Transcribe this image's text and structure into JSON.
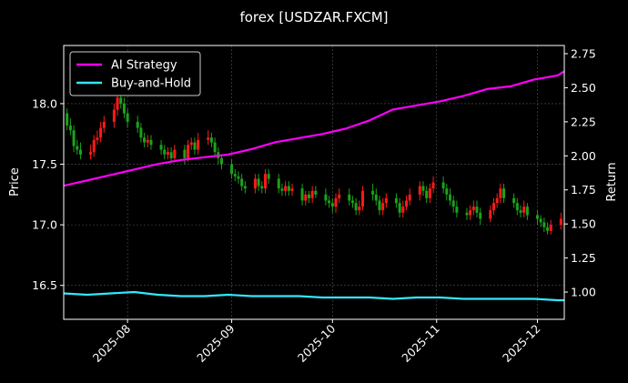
{
  "chart_data": {
    "type": "line",
    "title": "forex [USDZAR.FXCM]",
    "xlabel": "",
    "ylabel_left": "Price",
    "ylabel_right": "Return",
    "x_range": [
      "2025-07-13",
      "2025-12-09"
    ],
    "x_ticks": [
      "2025-08",
      "2025-09",
      "2025-10",
      "2025-11",
      "2025-12"
    ],
    "x_tick_dates": [
      "2025-08-01",
      "2025-09-01",
      "2025-10-01",
      "2025-11-01",
      "2025-12-01"
    ],
    "y_left_range": [
      16.22,
      18.48
    ],
    "y_left_ticks": [
      "16.5",
      "17.0",
      "17.5",
      "18.0"
    ],
    "y_left_tick_values": [
      16.5,
      17.0,
      17.5,
      18.0
    ],
    "y_right_range": [
      0.8,
      2.81
    ],
    "y_right_ticks": [
      "1.00",
      "1.25",
      "1.50",
      "1.75",
      "2.00",
      "2.25",
      "2.50",
      "2.75"
    ],
    "y_right_tick_values": [
      1.0,
      1.25,
      1.5,
      1.75,
      2.0,
      2.25,
      2.5,
      2.75
    ],
    "grid": true,
    "legend_position": "top-left",
    "colors": {
      "background": "#000000",
      "up_candle": "#ff1a1a",
      "down_candle": "#1aa31a",
      "ai_strategy": "#ff00ff",
      "buy_and_hold": "#33e6ff",
      "axis": "#ffffff",
      "grid": "#555555"
    },
    "candles": {
      "dates": [
        "2025-07-14",
        "2025-07-15",
        "2025-07-16",
        "2025-07-17",
        "2025-07-18",
        "2025-07-21",
        "2025-07-22",
        "2025-07-23",
        "2025-07-24",
        "2025-07-25",
        "2025-07-28",
        "2025-07-29",
        "2025-07-30",
        "2025-07-31",
        "2025-08-01",
        "2025-08-04",
        "2025-08-05",
        "2025-08-06",
        "2025-08-07",
        "2025-08-08",
        "2025-08-11",
        "2025-08-12",
        "2025-08-13",
        "2025-08-14",
        "2025-08-15",
        "2025-08-18",
        "2025-08-19",
        "2025-08-20",
        "2025-08-21",
        "2025-08-22",
        "2025-08-25",
        "2025-08-26",
        "2025-08-27",
        "2025-08-28",
        "2025-08-29",
        "2025-09-01",
        "2025-09-02",
        "2025-09-03",
        "2025-09-04",
        "2025-09-05",
        "2025-09-08",
        "2025-09-09",
        "2025-09-10",
        "2025-09-11",
        "2025-09-12",
        "2025-09-15",
        "2025-09-16",
        "2025-09-17",
        "2025-09-18",
        "2025-09-19",
        "2025-09-22",
        "2025-09-23",
        "2025-09-24",
        "2025-09-25",
        "2025-09-26",
        "2025-09-29",
        "2025-09-30",
        "2025-10-01",
        "2025-10-02",
        "2025-10-03",
        "2025-10-06",
        "2025-10-07",
        "2025-10-08",
        "2025-10-09",
        "2025-10-10",
        "2025-10-13",
        "2025-10-14",
        "2025-10-15",
        "2025-10-16",
        "2025-10-17",
        "2025-10-20",
        "2025-10-21",
        "2025-10-22",
        "2025-10-23",
        "2025-10-24",
        "2025-10-27",
        "2025-10-28",
        "2025-10-29",
        "2025-10-30",
        "2025-10-31",
        "2025-11-03",
        "2025-11-04",
        "2025-11-05",
        "2025-11-06",
        "2025-11-07",
        "2025-11-10",
        "2025-11-11",
        "2025-11-12",
        "2025-11-13",
        "2025-11-14",
        "2025-11-17",
        "2025-11-18",
        "2025-11-19",
        "2025-11-20",
        "2025-11-21",
        "2025-11-24",
        "2025-11-25",
        "2025-11-26",
        "2025-11-27",
        "2025-11-28",
        "2025-12-01",
        "2025-12-02",
        "2025-12-03",
        "2025-12-04",
        "2025-12-05",
        "2025-12-08"
      ],
      "open": [
        17.92,
        17.82,
        17.78,
        17.65,
        17.62,
        17.58,
        17.6,
        17.7,
        17.72,
        17.8,
        17.85,
        17.95,
        18.05,
        18.0,
        17.92,
        17.85,
        17.8,
        17.72,
        17.68,
        17.7,
        17.66,
        17.62,
        17.58,
        17.6,
        17.55,
        17.62,
        17.55,
        17.66,
        17.68,
        17.62,
        17.7,
        17.72,
        17.68,
        17.6,
        17.55,
        17.5,
        17.42,
        17.4,
        17.38,
        17.32,
        17.3,
        17.38,
        17.32,
        17.3,
        17.42,
        17.38,
        17.3,
        17.28,
        17.32,
        17.28,
        17.3,
        17.2,
        17.25,
        17.22,
        17.28,
        17.25,
        17.2,
        17.18,
        17.15,
        17.22,
        17.25,
        17.2,
        17.18,
        17.12,
        17.15,
        17.28,
        17.25,
        17.2,
        17.12,
        17.18,
        17.22,
        17.18,
        17.1,
        17.15,
        17.2,
        17.25,
        17.32,
        17.28,
        17.22,
        17.3,
        17.35,
        17.3,
        17.25,
        17.2,
        17.15,
        17.1,
        17.08,
        17.12,
        17.15,
        17.1,
        17.05,
        17.12,
        17.18,
        17.22,
        17.3,
        17.22,
        17.18,
        17.12,
        17.1,
        17.15,
        17.08,
        17.05,
        17.02,
        16.98,
        16.95,
        17.0
      ],
      "close": [
        17.82,
        17.78,
        17.65,
        17.62,
        17.58,
        17.6,
        17.7,
        17.72,
        17.8,
        17.85,
        17.95,
        18.05,
        18.0,
        17.92,
        17.85,
        17.8,
        17.72,
        17.68,
        17.7,
        17.66,
        17.62,
        17.58,
        17.6,
        17.55,
        17.62,
        17.55,
        17.66,
        17.68,
        17.62,
        17.7,
        17.72,
        17.68,
        17.6,
        17.55,
        17.5,
        17.42,
        17.4,
        17.38,
        17.32,
        17.3,
        17.38,
        17.32,
        17.3,
        17.42,
        17.38,
        17.3,
        17.28,
        17.32,
        17.28,
        17.3,
        17.2,
        17.25,
        17.22,
        17.28,
        17.25,
        17.2,
        17.18,
        17.15,
        17.22,
        17.25,
        17.2,
        17.18,
        17.12,
        17.15,
        17.28,
        17.25,
        17.2,
        17.12,
        17.18,
        17.22,
        17.18,
        17.1,
        17.15,
        17.2,
        17.25,
        17.32,
        17.28,
        17.22,
        17.3,
        17.35,
        17.3,
        17.25,
        17.2,
        17.15,
        17.1,
        17.08,
        17.12,
        17.15,
        17.1,
        17.05,
        17.12,
        17.18,
        17.22,
        17.3,
        17.22,
        17.18,
        17.12,
        17.1,
        17.15,
        17.08,
        17.05,
        17.02,
        16.98,
        16.95,
        17.0,
        17.05
      ],
      "high": [
        17.96,
        17.88,
        17.82,
        17.7,
        17.68,
        17.66,
        17.74,
        17.78,
        17.85,
        17.9,
        18.0,
        18.12,
        18.1,
        18.05,
        17.96,
        17.9,
        17.84,
        17.76,
        17.74,
        17.74,
        17.7,
        17.66,
        17.64,
        17.64,
        17.66,
        17.66,
        17.7,
        17.72,
        17.72,
        17.76,
        17.78,
        17.76,
        17.72,
        17.64,
        17.58,
        17.54,
        17.46,
        17.44,
        17.42,
        17.36,
        17.42,
        17.42,
        17.36,
        17.46,
        17.46,
        17.42,
        17.34,
        17.36,
        17.36,
        17.34,
        17.34,
        17.28,
        17.28,
        17.32,
        17.32,
        17.3,
        17.24,
        17.22,
        17.26,
        17.3,
        17.3,
        17.24,
        17.22,
        17.2,
        17.32,
        17.34,
        17.3,
        17.24,
        17.22,
        17.26,
        17.26,
        17.22,
        17.2,
        17.24,
        17.3,
        17.36,
        17.36,
        17.32,
        17.34,
        17.4,
        17.4,
        17.34,
        17.3,
        17.24,
        17.2,
        17.14,
        17.16,
        17.2,
        17.2,
        17.14,
        17.16,
        17.22,
        17.26,
        17.34,
        17.34,
        17.26,
        17.22,
        17.16,
        17.2,
        17.18,
        17.12,
        17.08,
        17.06,
        17.02,
        17.04,
        17.1
      ],
      "low": [
        17.78,
        17.74,
        17.6,
        17.58,
        17.54,
        17.54,
        17.56,
        17.66,
        17.68,
        17.76,
        17.8,
        17.9,
        17.96,
        17.88,
        17.8,
        17.76,
        17.68,
        17.64,
        17.64,
        17.62,
        17.58,
        17.54,
        17.54,
        17.52,
        17.52,
        17.5,
        17.52,
        17.62,
        17.58,
        17.58,
        17.66,
        17.64,
        17.56,
        17.5,
        17.46,
        17.38,
        17.36,
        17.34,
        17.28,
        17.26,
        17.26,
        17.28,
        17.26,
        17.26,
        17.34,
        17.26,
        17.24,
        17.24,
        17.24,
        17.24,
        17.16,
        17.16,
        17.18,
        17.18,
        17.22,
        17.16,
        17.14,
        17.1,
        17.1,
        17.18,
        17.16,
        17.14,
        17.08,
        17.08,
        17.12,
        17.2,
        17.16,
        17.08,
        17.08,
        17.14,
        17.14,
        17.06,
        17.06,
        17.12,
        17.16,
        17.2,
        17.24,
        17.18,
        17.18,
        17.26,
        17.26,
        17.2,
        17.16,
        17.1,
        17.06,
        17.04,
        17.04,
        17.08,
        17.06,
        17.0,
        17.02,
        17.08,
        17.14,
        17.18,
        17.18,
        17.14,
        17.08,
        17.06,
        17.06,
        17.04,
        17.0,
        16.98,
        16.94,
        16.92,
        16.92,
        16.96
      ]
    },
    "series": [
      {
        "name": "AI Strategy",
        "axis": "right",
        "dates": [
          "2025-07-13",
          "2025-07-20",
          "2025-07-27",
          "2025-08-03",
          "2025-08-10",
          "2025-08-17",
          "2025-08-24",
          "2025-08-31",
          "2025-09-07",
          "2025-09-14",
          "2025-09-21",
          "2025-09-28",
          "2025-10-05",
          "2025-10-12",
          "2025-10-19",
          "2025-10-26",
          "2025-11-02",
          "2025-11-09",
          "2025-11-16",
          "2025-11-23",
          "2025-11-30",
          "2025-12-07",
          "2025-12-09"
        ],
        "values": [
          1.78,
          1.82,
          1.86,
          1.9,
          1.94,
          1.97,
          1.99,
          2.01,
          2.05,
          2.1,
          2.13,
          2.16,
          2.2,
          2.26,
          2.34,
          2.37,
          2.4,
          2.44,
          2.49,
          2.51,
          2.56,
          2.59,
          2.62
        ]
      },
      {
        "name": "Buy-and-Hold",
        "axis": "right",
        "dates": [
          "2025-07-13",
          "2025-07-20",
          "2025-07-27",
          "2025-08-03",
          "2025-08-10",
          "2025-08-17",
          "2025-08-24",
          "2025-08-31",
          "2025-09-07",
          "2025-09-14",
          "2025-09-21",
          "2025-09-28",
          "2025-10-05",
          "2025-10-12",
          "2025-10-19",
          "2025-10-26",
          "2025-11-02",
          "2025-11-09",
          "2025-11-16",
          "2025-11-23",
          "2025-11-30",
          "2025-12-07",
          "2025-12-09"
        ],
        "values": [
          0.99,
          0.98,
          0.99,
          1.0,
          0.98,
          0.97,
          0.97,
          0.98,
          0.97,
          0.97,
          0.97,
          0.96,
          0.96,
          0.96,
          0.95,
          0.96,
          0.96,
          0.95,
          0.95,
          0.95,
          0.95,
          0.94,
          0.94
        ]
      }
    ]
  }
}
